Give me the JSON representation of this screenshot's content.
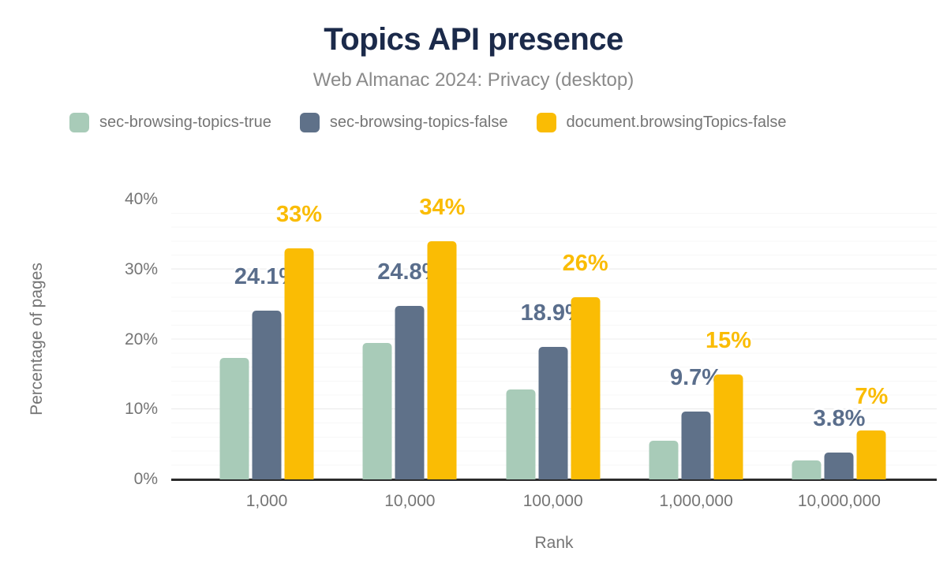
{
  "header": {
    "title": "Topics API presence",
    "subtitle": "Web Almanac 2024: Privacy (desktop)"
  },
  "legend": [
    {
      "label": "sec-browsing-topics-true",
      "color": "#a8cbb8"
    },
    {
      "label": "sec-browsing-topics-false",
      "color": "#5f7189"
    },
    {
      "label": "document.browsingTopics-false",
      "color": "#fabc04"
    }
  ],
  "chart_data": {
    "type": "bar",
    "title": "Topics API presence",
    "subtitle": "Web Almanac 2024: Privacy (desktop)",
    "xlabel": "Rank",
    "ylabel": "Percentage of pages",
    "categories": [
      "1,000",
      "10,000",
      "100,000",
      "1,000,000",
      "10,000,000"
    ],
    "series": [
      {
        "name": "sec-browsing-topics-true",
        "color": "#a8cbb8",
        "values": [
          17.3,
          19.5,
          12.8,
          5.5,
          2.7
        ],
        "labels": [
          "",
          "",
          "",
          "",
          ""
        ]
      },
      {
        "name": "sec-browsing-topics-false",
        "color": "#5f7189",
        "label_color": "#5a6e8c",
        "values": [
          24.1,
          24.8,
          18.9,
          9.7,
          3.8
        ],
        "labels": [
          "24.1%",
          "24.8%",
          "18.9%",
          "9.7%",
          "3.8%"
        ]
      },
      {
        "name": "document.browsingTopics-false",
        "color": "#fabc04",
        "label_color": "#fabc04",
        "values": [
          33,
          34,
          26,
          15,
          7
        ],
        "labels": [
          "33%",
          "34%",
          "26%",
          "15%",
          "7%"
        ]
      }
    ],
    "y_ticks": [
      "0%",
      "10%",
      "20%",
      "30%",
      "40%"
    ],
    "ylim": [
      0,
      40
    ],
    "grid": "horizontal, major every 10%, minor every 2%",
    "legend_position": "top-left"
  }
}
